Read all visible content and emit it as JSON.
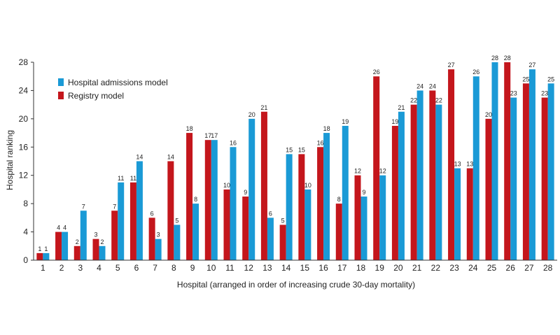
{
  "chart_data": {
    "type": "bar",
    "categories": [
      "1",
      "2",
      "3",
      "4",
      "5",
      "6",
      "7",
      "8",
      "9",
      "10",
      "11",
      "12",
      "13",
      "14",
      "15",
      "16",
      "17",
      "18",
      "19",
      "20",
      "21",
      "22",
      "23",
      "24",
      "25",
      "26",
      "27",
      "28"
    ],
    "series": [
      {
        "name": "Registry model",
        "color": "#c4161c",
        "values": [
          1,
          4,
          2,
          3,
          7,
          11,
          6,
          14,
          18,
          17,
          10,
          9,
          21,
          5,
          15,
          16,
          8,
          12,
          26,
          19,
          22,
          24,
          27,
          13,
          20,
          28,
          25,
          23
        ]
      },
      {
        "name": "Hospital admissions model",
        "color": "#1a9ad6",
        "values": [
          1,
          4,
          7,
          2,
          11,
          14,
          3,
          5,
          8,
          17,
          16,
          20,
          6,
          15,
          10,
          18,
          19,
          9,
          12,
          21,
          24,
          22,
          13,
          26,
          28,
          23,
          27,
          25
        ]
      }
    ],
    "xlabel": "Hospital (arranged in order of increasing crude 30-day mortality)",
    "ylabel": "Hospital ranking",
    "ylim": [
      0,
      28
    ],
    "yticks": [
      0,
      4,
      8,
      12,
      16,
      20,
      24,
      28
    ],
    "legend": {
      "placement": "top-left",
      "order": [
        "Hospital admissions model",
        "Registry model"
      ]
    },
    "grid": false
  }
}
